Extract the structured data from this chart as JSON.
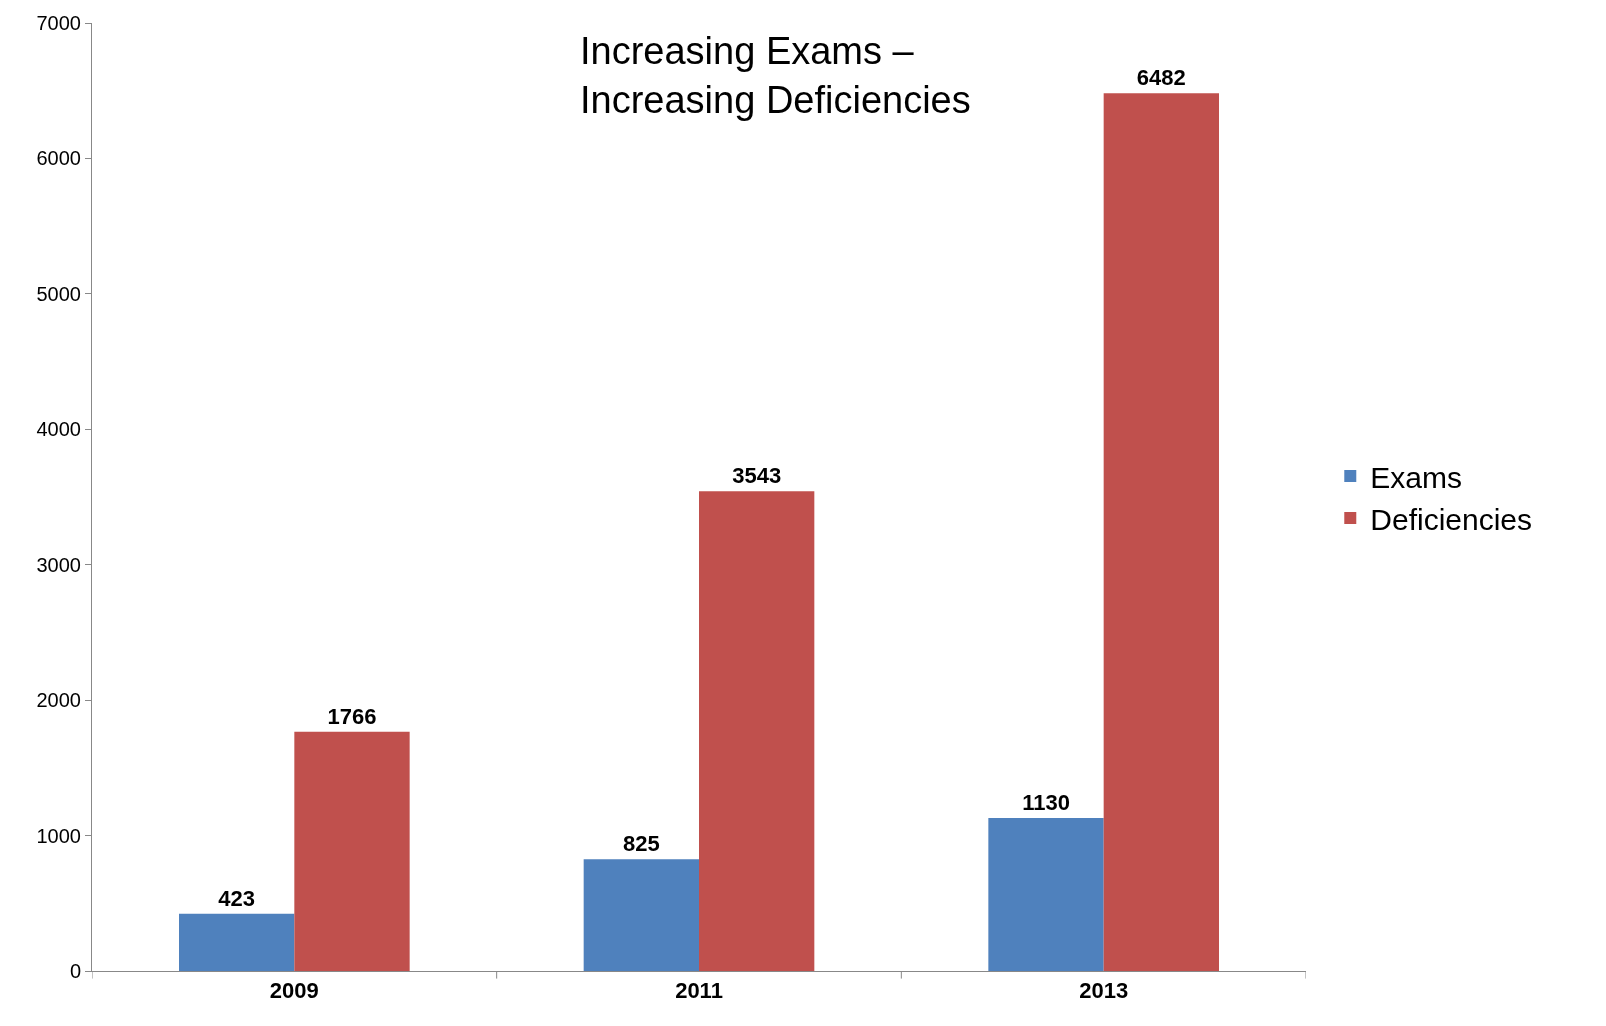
{
  "chart_data": {
    "type": "bar",
    "title": "Increasing Exams –\nIncreasing Deficiencies",
    "categories": [
      "2009",
      "2011",
      "2013"
    ],
    "series": [
      {
        "name": "Exams",
        "color": "#4f81bd",
        "values": [
          423,
          825,
          1130
        ]
      },
      {
        "name": "Deficiencies",
        "color": "#c0504d",
        "values": [
          1766,
          3543,
          6482
        ]
      }
    ],
    "ylim": [
      0,
      7000
    ],
    "yticks": [
      0,
      1000,
      2000,
      3000,
      4000,
      5000,
      6000,
      7000
    ],
    "grid": false,
    "legend": "right",
    "data_labels": true
  }
}
